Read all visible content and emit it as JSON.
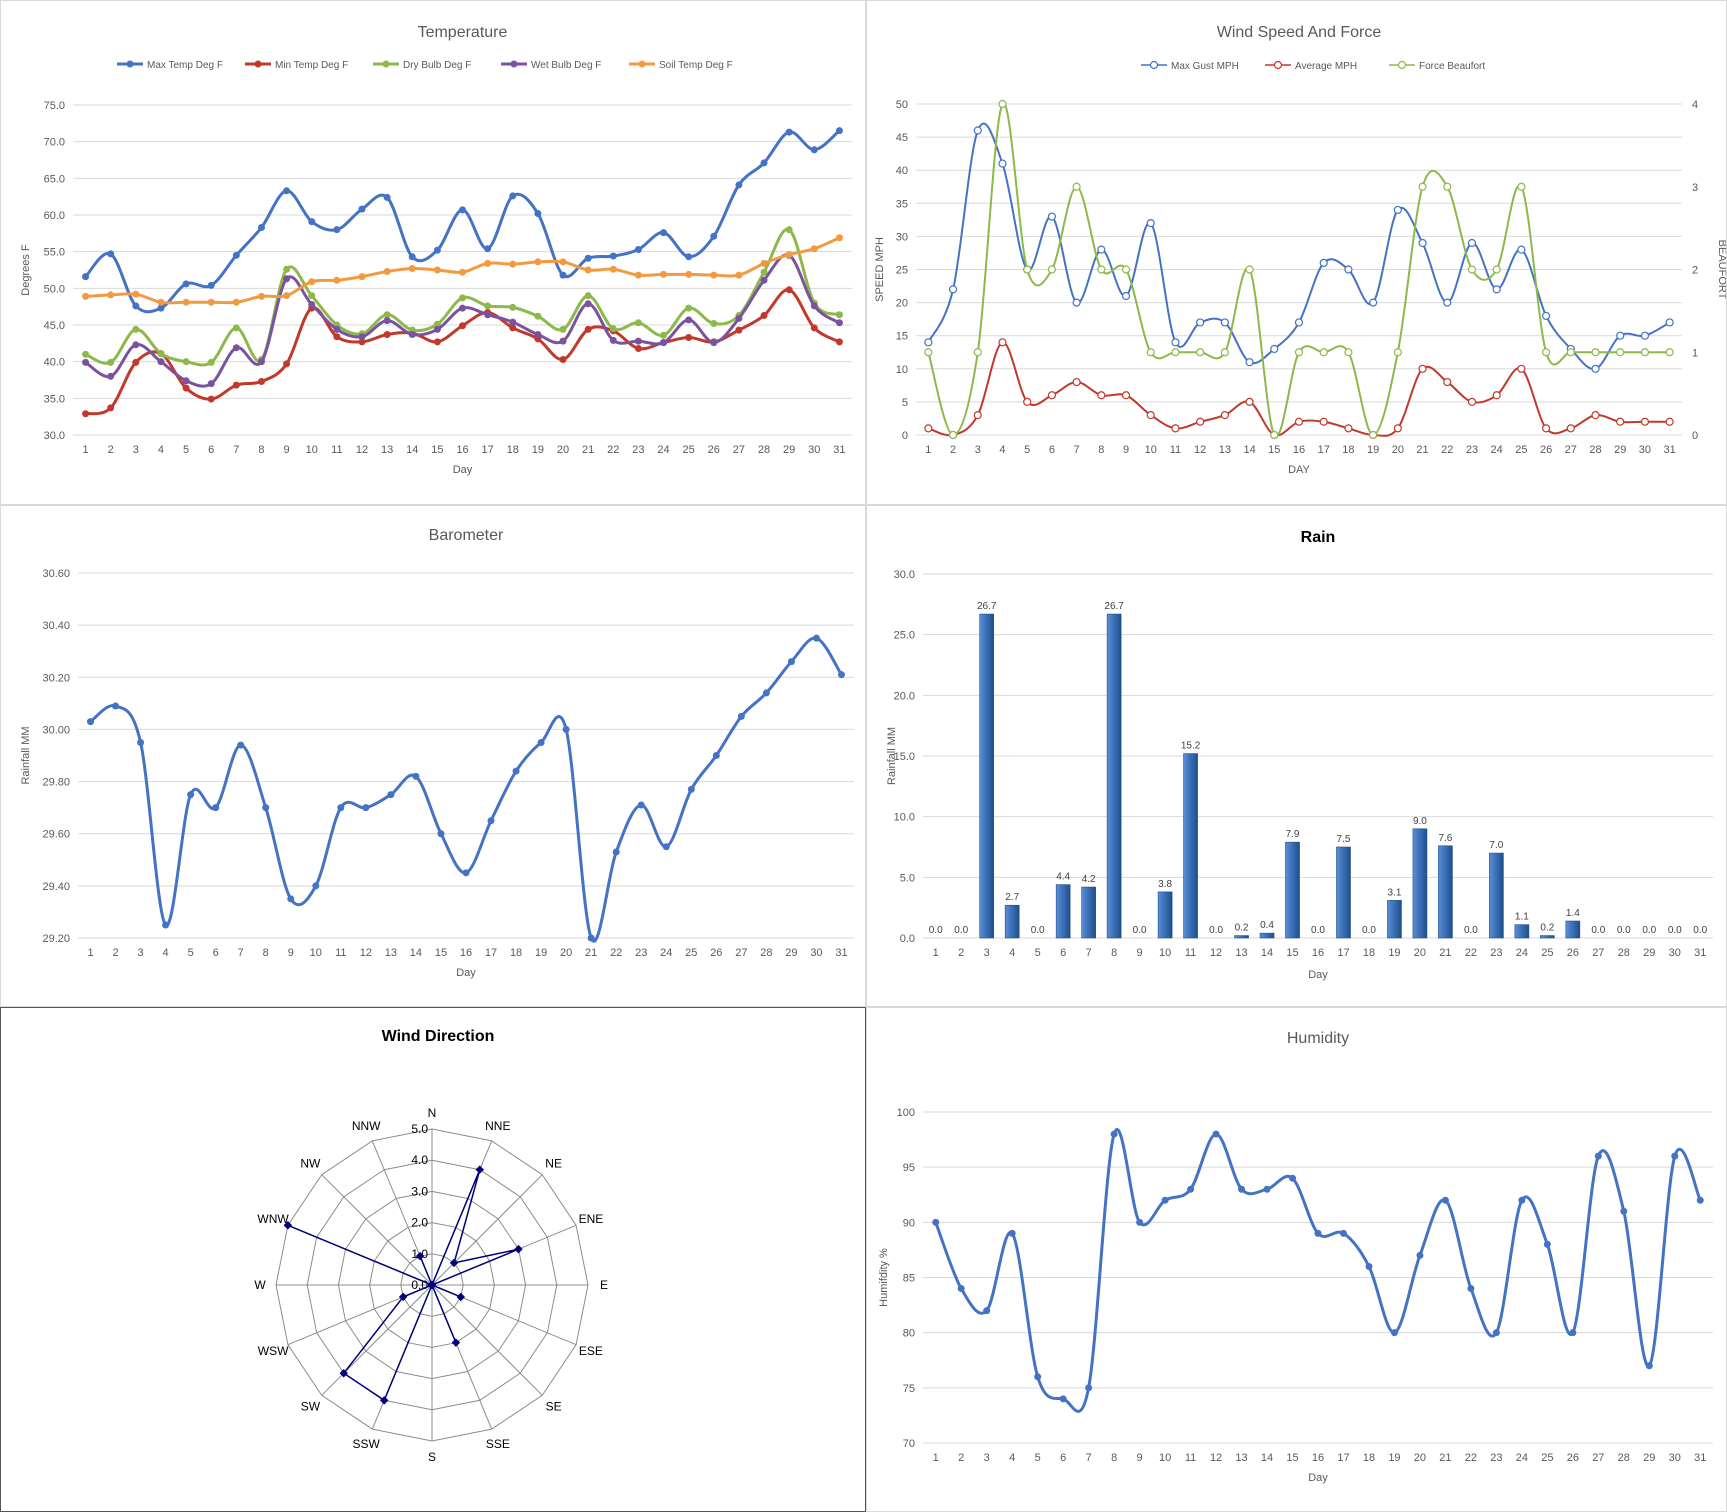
{
  "colors": {
    "blue": "#4472C4",
    "red": "#C0392B",
    "green": "#8DB84A",
    "purple": "#7B52A0",
    "orange": "#F39A40",
    "bar": "#3A6EB4",
    "radar_line": "#00007A",
    "grid": "#D9D9D9"
  },
  "chart_data": [
    {
      "id": "temperature",
      "type": "line",
      "title": "Temperature",
      "xlabel": "Day",
      "ylabel": "Degrees F",
      "ylim": [
        30,
        75
      ],
      "yticks": [
        "30.0",
        "35.0",
        "40.0",
        "45.0",
        "50.0",
        "55.0",
        "60.0",
        "65.0",
        "70.0",
        "75.0"
      ],
      "categories": [
        "1",
        "2",
        "3",
        "4",
        "5",
        "6",
        "7",
        "8",
        "9",
        "10",
        "11",
        "12",
        "13",
        "14",
        "15",
        "16",
        "17",
        "18",
        "19",
        "20",
        "21",
        "22",
        "23",
        "24",
        "25",
        "26",
        "27",
        "28",
        "29",
        "30",
        "31"
      ],
      "legend_position": "top",
      "series": [
        {
          "name": "Max Temp Deg F",
          "color": "#4472C4",
          "values": [
            51.6,
            54.7,
            47.6,
            47.3,
            50.6,
            50.4,
            54.5,
            58.3,
            63.3,
            59.1,
            58.0,
            60.8,
            62.4,
            54.3,
            55.2,
            60.7,
            55.4,
            62.6,
            60.2,
            51.8,
            54.1,
            54.4,
            55.3,
            57.6,
            54.3,
            57.1,
            64.1,
            67.1,
            71.3,
            68.9,
            71.5
          ]
        },
        {
          "name": "Min Temp Deg F",
          "color": "#C0392B",
          "values": [
            32.9,
            33.7,
            39.9,
            41.1,
            36.4,
            34.9,
            36.8,
            37.3,
            39.7,
            47.3,
            43.4,
            42.7,
            43.7,
            43.9,
            42.7,
            44.9,
            46.7,
            44.6,
            43.1,
            40.3,
            44.4,
            44.2,
            41.8,
            42.6,
            43.3,
            42.7,
            44.3,
            46.3,
            49.8,
            44.6,
            42.7
          ]
        },
        {
          "name": "Dry Bulb Deg F",
          "color": "#8DB84A",
          "values": [
            41.0,
            39.9,
            44.4,
            41.1,
            40.0,
            39.9,
            44.6,
            40.3,
            52.6,
            49.0,
            45.0,
            43.8,
            46.4,
            44.3,
            45.1,
            48.7,
            47.6,
            47.4,
            46.2,
            44.4,
            49.0,
            44.5,
            45.3,
            43.6,
            47.3,
            45.2,
            46.3,
            52.2,
            58.0,
            48.0,
            46.4
          ]
        },
        {
          "name": "Wet Bulb Deg F",
          "color": "#7B52A0",
          "values": [
            39.9,
            38.0,
            42.3,
            40.0,
            37.4,
            37.0,
            41.9,
            40.0,
            51.3,
            47.8,
            44.4,
            43.4,
            45.6,
            43.7,
            44.4,
            47.3,
            46.4,
            45.4,
            43.7,
            42.8,
            47.9,
            42.9,
            42.8,
            42.6,
            45.7,
            42.6,
            45.9,
            51.1,
            54.5,
            47.6,
            45.3
          ]
        },
        {
          "name": "Soil Temp Deg F",
          "color": "#F39A40",
          "values": [
            48.9,
            49.1,
            49.2,
            48.1,
            48.1,
            48.1,
            48.1,
            48.9,
            49.0,
            50.9,
            51.1,
            51.6,
            52.3,
            52.7,
            52.5,
            52.2,
            53.4,
            53.3,
            53.6,
            53.6,
            52.5,
            52.6,
            51.8,
            51.9,
            51.9,
            51.8,
            51.8,
            53.4,
            54.6,
            55.4,
            56.9
          ]
        }
      ]
    },
    {
      "id": "wind",
      "type": "line",
      "title": "Wind Speed And Force",
      "xlabel": "DAY",
      "ylabel": "SPEED MPH",
      "y2label": "BEAUFORT",
      "ylim": [
        0,
        50
      ],
      "y2lim": [
        0,
        4
      ],
      "yticks": [
        "0",
        "5",
        "10",
        "15",
        "20",
        "25",
        "30",
        "35",
        "40",
        "45",
        "50"
      ],
      "y2ticks": [
        "0",
        "1",
        "2",
        "3",
        "4"
      ],
      "categories": [
        "1",
        "2",
        "3",
        "4",
        "5",
        "6",
        "7",
        "8",
        "9",
        "10",
        "11",
        "12",
        "13",
        "14",
        "15",
        "16",
        "17",
        "18",
        "19",
        "20",
        "21",
        "22",
        "23",
        "24",
        "25",
        "26",
        "27",
        "28",
        "29",
        "30",
        "31"
      ],
      "legend_position": "top",
      "series": [
        {
          "name": "Max Gust MPH",
          "color": "#4472C4",
          "axis": "left",
          "values": [
            14,
            22,
            46,
            41,
            25,
            33,
            20,
            28,
            21,
            32,
            14,
            17,
            17,
            11,
            13,
            17,
            26,
            25,
            20,
            34,
            29,
            20,
            29,
            22,
            28,
            18,
            13,
            10,
            15,
            15,
            17
          ]
        },
        {
          "name": "Average MPH",
          "color": "#C0392B",
          "axis": "left",
          "values": [
            1,
            0,
            3,
            14,
            5,
            6,
            8,
            6,
            6,
            3,
            1,
            2,
            3,
            5,
            0,
            2,
            2,
            1,
            0,
            1,
            10,
            8,
            5,
            6,
            10,
            1,
            1,
            3,
            2,
            2,
            2
          ]
        },
        {
          "name": "Force Beaufort",
          "color": "#8DB84A",
          "axis": "right",
          "values": [
            1,
            0,
            1,
            4,
            2,
            2,
            3,
            2,
            2,
            1,
            1,
            1,
            1,
            2,
            0,
            1,
            1,
            1,
            0,
            1,
            3,
            3,
            2,
            2,
            3,
            1,
            1,
            1,
            1,
            1,
            1
          ]
        }
      ]
    },
    {
      "id": "barometer",
      "type": "line",
      "title": "Barometer",
      "xlabel": "Day",
      "ylabel": "Rainfall MM",
      "ylim": [
        29.2,
        30.6
      ],
      "yticks": [
        "29.20",
        "29.40",
        "29.60",
        "29.80",
        "30.00",
        "30.20",
        "30.40",
        "30.60"
      ],
      "categories": [
        "1",
        "2",
        "3",
        "4",
        "5",
        "6",
        "7",
        "8",
        "9",
        "10",
        "11",
        "12",
        "13",
        "14",
        "15",
        "16",
        "17",
        "18",
        "19",
        "20",
        "21",
        "22",
        "23",
        "24",
        "25",
        "26",
        "27",
        "28",
        "29",
        "30",
        "31"
      ],
      "series": [
        {
          "color": "#4472C4",
          "values": [
            30.03,
            30.09,
            29.95,
            29.25,
            29.75,
            29.7,
            29.94,
            29.7,
            29.35,
            29.4,
            29.7,
            29.7,
            29.75,
            29.82,
            29.6,
            29.45,
            29.65,
            29.84,
            29.95,
            30.0,
            29.2,
            29.53,
            29.71,
            29.55,
            29.77,
            29.9,
            30.05,
            30.14,
            30.26,
            30.35,
            30.21
          ]
        }
      ]
    },
    {
      "id": "rain",
      "type": "bar",
      "title": "Rain",
      "xlabel": "Day",
      "ylabel": "Rainfall MM",
      "ylim": [
        0,
        30
      ],
      "yticks": [
        "0.0",
        "5.0",
        "10.0",
        "15.0",
        "20.0",
        "25.0",
        "30.0"
      ],
      "categories": [
        "1",
        "2",
        "3",
        "4",
        "5",
        "6",
        "7",
        "8",
        "9",
        "10",
        "11",
        "12",
        "13",
        "14",
        "15",
        "16",
        "17",
        "18",
        "19",
        "20",
        "21",
        "22",
        "23",
        "24",
        "25",
        "26",
        "27",
        "28",
        "29",
        "30",
        "31"
      ],
      "values": [
        0.0,
        0.0,
        26.7,
        2.7,
        0.0,
        4.4,
        4.2,
        26.7,
        0.0,
        3.8,
        15.2,
        0.0,
        0.2,
        0.4,
        7.9,
        0.0,
        7.5,
        0.0,
        3.1,
        9.0,
        7.6,
        0.0,
        7.0,
        1.1,
        0.2,
        1.4,
        0.0,
        0.0,
        0.0,
        0.0,
        0.0
      ],
      "labels": [
        "0.0",
        "0.0",
        "26.7",
        "2.7",
        "0.0",
        "4.4",
        "4.2",
        "26.7",
        "0.0",
        "3.8",
        "15.2",
        "0.0",
        "0.2",
        "0.4",
        "7.9",
        "0.0",
        "7.5",
        "0.0",
        "3.1",
        "9.0",
        "7.6",
        "0.0",
        "7.0",
        "1.1",
        "0.2",
        "1.4",
        "0.0",
        "0.0",
        "0.0",
        "0.0",
        "0.0"
      ]
    },
    {
      "id": "wind_direction",
      "type": "radar",
      "title": "Wind Direction",
      "rlim": [
        0,
        5
      ],
      "rticks": [
        "0.0",
        "1.0",
        "2.0",
        "3.0",
        "4.0",
        "5.0"
      ],
      "categories": [
        "N",
        "NNE",
        "NE",
        "ENE",
        "E",
        "ESE",
        "SE",
        "SSE",
        "S",
        "SSW",
        "SW",
        "WSW",
        "W",
        "WNW",
        "NW",
        "NNW"
      ],
      "values": [
        0,
        4,
        1,
        3,
        0,
        1,
        0,
        2,
        0,
        4,
        4,
        1,
        0,
        5,
        0,
        1
      ]
    },
    {
      "id": "humidity",
      "type": "line",
      "title": "Humidity",
      "xlabel": "Day",
      "ylabel": "Humifdity  %",
      "ylim": [
        70,
        100
      ],
      "yticks": [
        "70",
        "75",
        "80",
        "85",
        "90",
        "95",
        "100"
      ],
      "categories": [
        "1",
        "2",
        "3",
        "4",
        "5",
        "6",
        "7",
        "8",
        "9",
        "10",
        "11",
        "12",
        "13",
        "14",
        "15",
        "16",
        "17",
        "18",
        "19",
        "20",
        "21",
        "22",
        "23",
        "24",
        "25",
        "26",
        "27",
        "28",
        "29",
        "30",
        "31"
      ],
      "series": [
        {
          "color": "#4472C4",
          "values": [
            90,
            84,
            82,
            89,
            76,
            74,
            75,
            98,
            90,
            92,
            93,
            98,
            93,
            93,
            94,
            89,
            89,
            86,
            80,
            87,
            92,
            84,
            80,
            92,
            88,
            80,
            96,
            91,
            77,
            96,
            92
          ]
        }
      ]
    }
  ]
}
